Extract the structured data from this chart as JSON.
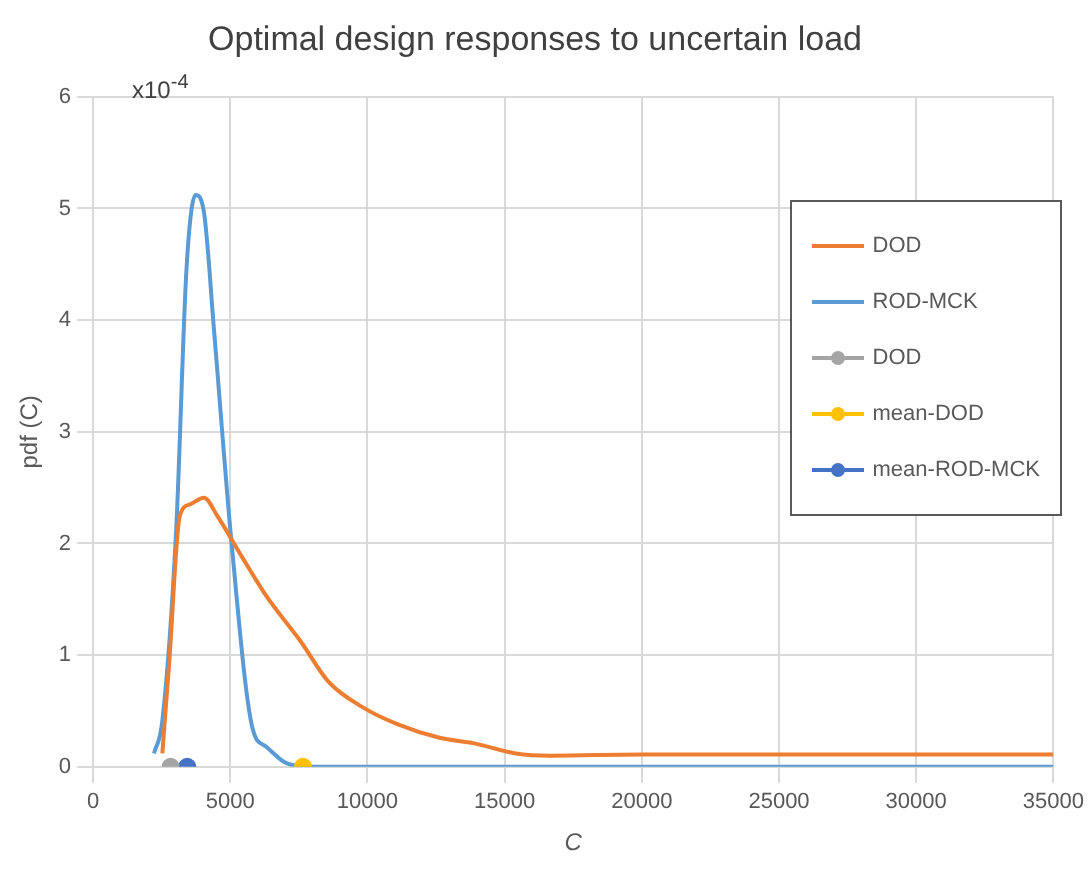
{
  "chart_data": {
    "type": "line",
    "title": "Optimal design responses to uncertain load",
    "xlabel": "C",
    "ylabel": "pdf (C)",
    "annotations": [
      "x10$^{-4}$"
    ],
    "xlim": [
      0,
      35000
    ],
    "xticks": [
      0,
      5000,
      10000,
      15000,
      20000,
      25000,
      30000,
      35000
    ],
    "ylim": [
      0,
      6
    ],
    "yticks": [
      0,
      1,
      2,
      3,
      4,
      5,
      6
    ],
    "grid": true,
    "legend": "top right",
    "line_style": "solid",
    "series": [
      {
        "name": "DOD",
        "marker": "none",
        "color": "#ed7d31",
        "x": [
          2525,
          2778,
          3157,
          3535,
          4040,
          4545,
          5429,
          6313,
          7576,
          8586,
          9848,
          11111,
          12626,
          13889,
          15404,
          16667,
          20000,
          25000,
          30000,
          35000
        ],
        "values": [
          0.12,
          0.94,
          2.24,
          2.35,
          2.41,
          2.24,
          1.88,
          1.53,
          1.12,
          0.76,
          0.53,
          0.38,
          0.26,
          0.21,
          0.12,
          0.1,
          0.11,
          0.11,
          0.11,
          0.11
        ]
      },
      {
        "name": "ROD-MCK",
        "marker": "none",
        "color": "#5b9bd5",
        "x": [
          2222,
          2525,
          3030,
          3409,
          3737,
          4040,
          4419,
          5050,
          5808,
          6313,
          7070,
          8080,
          15000,
          25000,
          35000
        ],
        "values": [
          0.12,
          0.41,
          2.12,
          4.47,
          5.12,
          4.97,
          3.88,
          2.0,
          0.35,
          0.18,
          0.03,
          0,
          0,
          0,
          0
        ]
      },
      {
        "name": "DOD",
        "type": "scatter",
        "marker": "circle",
        "color": "#a5a5a5",
        "x": [
          2828
        ],
        "values": [
          0
        ]
      },
      {
        "name": "mean-DOD",
        "type": "scatter",
        "marker": "circle",
        "color": "#ffc000",
        "x": [
          7652
        ],
        "values": [
          0
        ]
      },
      {
        "name": "mean-ROD-MCK",
        "type": "scatter",
        "marker": "circle",
        "color": "#4472c4",
        "x": [
          3434
        ],
        "values": [
          0
        ]
      }
    ]
  }
}
